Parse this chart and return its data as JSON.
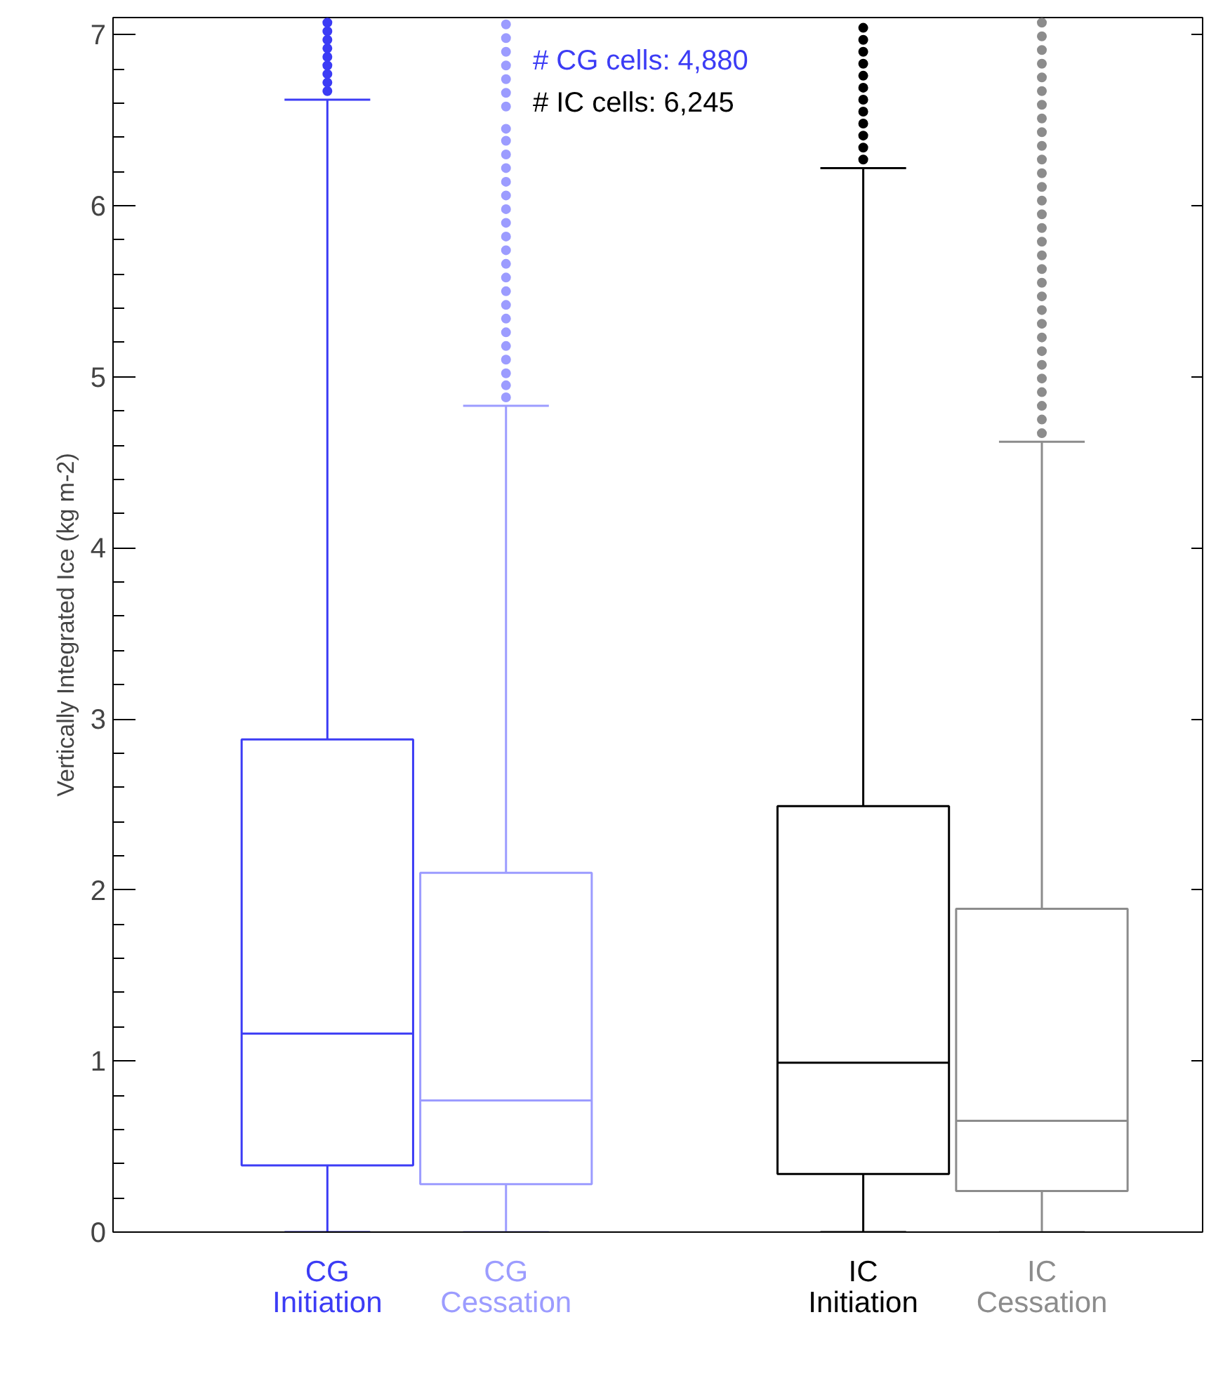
{
  "chart_data": {
    "type": "box",
    "ylabel": "Vertically Integrated Ice (kg m-2)",
    "categories": [
      "CG\nInitiation",
      "CG\nCessation",
      "IC\nInitiation",
      "IC\nCessation"
    ],
    "colors": [
      "#3c3cf5",
      "#9c9cff",
      "#000000",
      "#8c8c8c"
    ],
    "ylim": [
      0,
      7.1
    ],
    "yticks": [
      0,
      1,
      2,
      3,
      4,
      5,
      6,
      7
    ],
    "annotations": [
      "# CG cells: 4,880",
      "# IC cells: 6,245"
    ],
    "boxes": [
      {
        "low": 0,
        "q1": 0.39,
        "median": 1.16,
        "q3": 2.88,
        "high": 6.62,
        "outliers": [
          6.67,
          6.72,
          6.77,
          6.82,
          6.87,
          6.92,
          6.97,
          7.02,
          7.07
        ]
      },
      {
        "low": 0,
        "q1": 0.28,
        "median": 0.77,
        "q3": 2.1,
        "high": 4.83,
        "outliers": [
          4.88,
          4.95,
          5.02,
          5.1,
          5.18,
          5.26,
          5.34,
          5.42,
          5.5,
          5.58,
          5.66,
          5.74,
          5.82,
          5.9,
          5.98,
          6.06,
          6.14,
          6.22,
          6.3,
          6.38,
          6.45,
          6.58,
          6.66,
          6.74,
          6.82,
          6.9,
          6.98,
          7.06
        ]
      },
      {
        "low": 0,
        "q1": 0.34,
        "median": 0.99,
        "q3": 2.49,
        "high": 6.22,
        "outliers": [
          6.27,
          6.34,
          6.41,
          6.48,
          6.55,
          6.62,
          6.69,
          6.76,
          6.83,
          6.9,
          6.97,
          7.04
        ]
      },
      {
        "low": 0,
        "q1": 0.24,
        "median": 0.65,
        "q3": 1.89,
        "high": 4.62,
        "outliers": [
          4.67,
          4.75,
          4.83,
          4.91,
          4.99,
          5.07,
          5.15,
          5.23,
          5.31,
          5.39,
          5.47,
          5.55,
          5.63,
          5.71,
          5.79,
          5.87,
          5.95,
          6.03,
          6.11,
          6.19,
          6.27,
          6.35,
          6.43,
          6.51,
          6.59,
          6.67,
          6.75,
          6.83,
          6.91,
          6.99,
          7.07
        ]
      }
    ]
  }
}
